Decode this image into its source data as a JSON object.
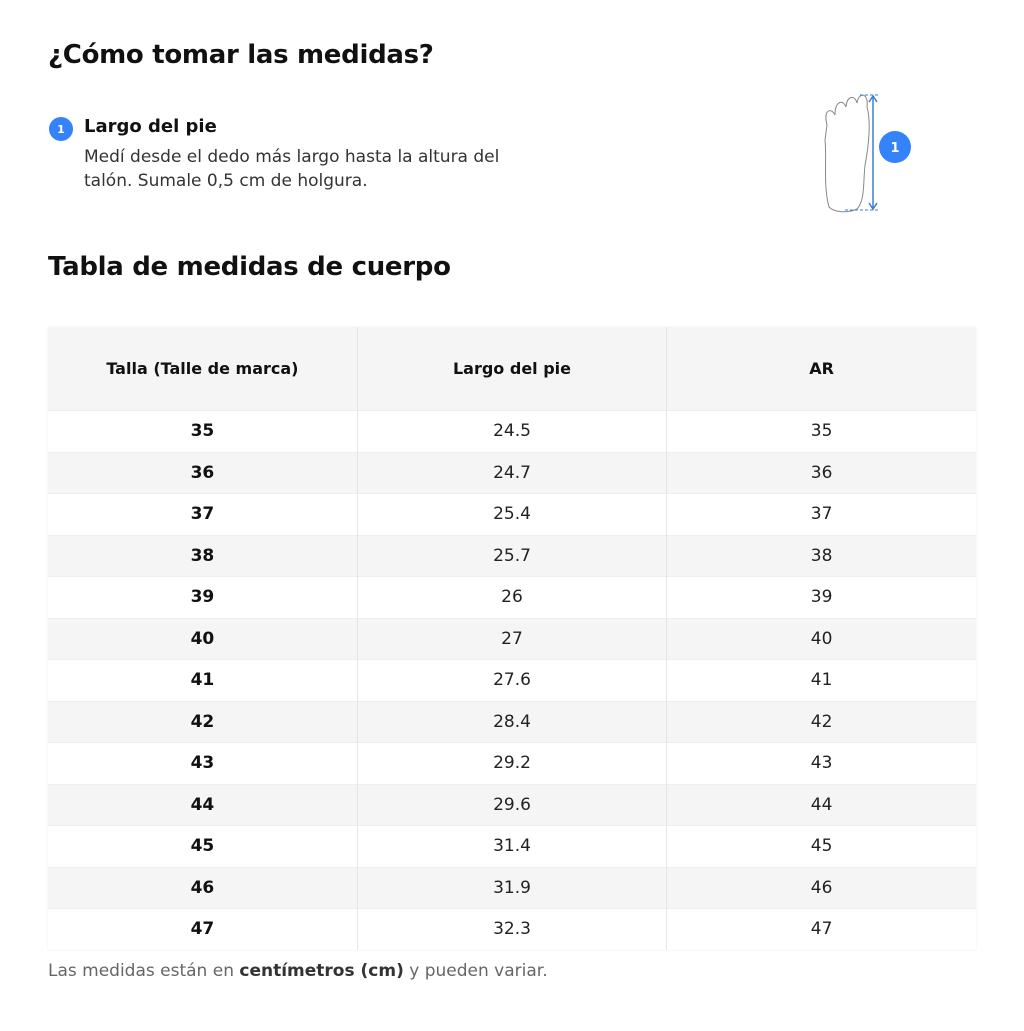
{
  "how_to": {
    "title": "¿Cómo tomar las medidas?",
    "steps": [
      {
        "number": "1",
        "title": "Largo del pie",
        "description": "Medí desde el dedo más largo hasta la altura del talón. Sumale 0,5 cm de holgura."
      }
    ],
    "figure": {
      "icon": "foot-measure-icon",
      "badge": "1",
      "accent": "#3483fa"
    }
  },
  "table": {
    "title": "Tabla de medidas de cuerpo",
    "headers": [
      "Talla (Talle de marca)",
      "Largo del pie",
      "AR"
    ],
    "rows": [
      [
        "35",
        "24.5",
        "35"
      ],
      [
        "36",
        "24.7",
        "36"
      ],
      [
        "37",
        "25.4",
        "37"
      ],
      [
        "38",
        "25.7",
        "38"
      ],
      [
        "39",
        "26",
        "39"
      ],
      [
        "40",
        "27",
        "40"
      ],
      [
        "41",
        "27.6",
        "41"
      ],
      [
        "42",
        "28.4",
        "42"
      ],
      [
        "43",
        "29.2",
        "43"
      ],
      [
        "44",
        "29.6",
        "44"
      ],
      [
        "45",
        "31.4",
        "45"
      ],
      [
        "46",
        "31.9",
        "46"
      ],
      [
        "47",
        "32.3",
        "47"
      ]
    ]
  },
  "footnote": {
    "prefix": "Las medidas están en ",
    "bold": "centímetros (cm)",
    "suffix": " y pueden variar."
  }
}
